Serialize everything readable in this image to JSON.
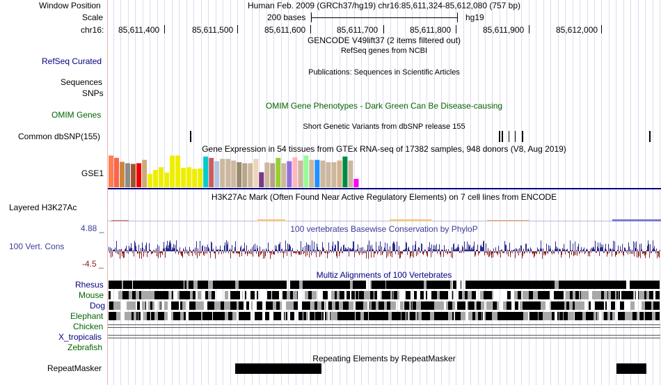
{
  "header": {
    "window_position_label": "Window Position",
    "window_position_value": "Human Feb. 2009 (GRCh37/hg19)   chr16:85,611,324-85,612,080 (757 bp)",
    "scale_label": "Scale",
    "scale_bases": "200 bases",
    "scale_assembly": "hg19",
    "chrom_label": "chr16:",
    "ruler_ticks": [
      "85,611,400",
      "85,611,500",
      "85,611,600",
      "85,611,700",
      "85,611,800",
      "85,611,900",
      "85,612,000"
    ]
  },
  "tracks": {
    "gencode": {
      "title": "GENCODE V49lift37 (2 items filtered out)"
    },
    "refseq": {
      "label": "RefSeq Curated",
      "title": "RefSeq genes from NCBI"
    },
    "publications": {
      "title": "Publications: Sequences in Scientific Articles"
    },
    "sequences": {
      "label": "Sequences"
    },
    "snps": {
      "label": "SNPs"
    },
    "omim": {
      "label": "OMIM Genes",
      "title": "OMIM Gene Phenotypes - Dark Green Can Be Disease-causing"
    },
    "dbsnp": {
      "label": "Common dbSNP(155)",
      "title": "Short Genetic Variants from dbSNP release 155"
    },
    "gtex": {
      "title": "Gene Expression in 54 tissues from GTEx RNA-seq of 17382 samples, 948 donors (V8, Aug 2019)",
      "gene_label": "GSE1"
    },
    "h3k27ac": {
      "label": "Layered H3K27Ac",
      "title": "H3K27Ac Mark (Often Found Near Active Regulatory Elements) on 7 cell lines from ENCODE"
    },
    "conservation": {
      "label": "100 Vert. Cons",
      "title": "100 vertebrates Basewise Conservation by PhyloP",
      "max_label": "4.88 _",
      "min_label": "-4.5 _"
    },
    "multiz": {
      "title": "Multiz Alignments of 100 Vertebrates",
      "species": [
        "Rhesus",
        "Mouse",
        "Dog",
        "Elephant",
        "Chicken",
        "X_tropicalis",
        "Zebrafish"
      ]
    },
    "repeatmasker": {
      "label": "RepeatMasker",
      "title": "Repeating Elements by RepeatMasker"
    }
  },
  "gtex_bars": [
    {
      "color": "#ff7f50",
      "value": 0.95
    },
    {
      "color": "#ff6347",
      "value": 0.88
    },
    {
      "color": "#cd853f",
      "value": 0.76
    },
    {
      "color": "#8b8b8b",
      "value": 0.72
    },
    {
      "color": "#a0522d",
      "value": 0.7
    },
    {
      "color": "#ee0000",
      "value": 0.72
    },
    {
      "color": "#cdaa7d",
      "value": 0.82
    },
    {
      "color": "#eeee00",
      "value": 0.4
    },
    {
      "color": "#eeee00",
      "value": 0.52
    },
    {
      "color": "#eeee00",
      "value": 0.6
    },
    {
      "color": "#eeee00",
      "value": 0.44
    },
    {
      "color": "#eeee00",
      "value": 0.95
    },
    {
      "color": "#eeee00",
      "value": 0.95
    },
    {
      "color": "#eeee00",
      "value": 0.58
    },
    {
      "color": "#eeee00",
      "value": 0.6
    },
    {
      "color": "#eeee00",
      "value": 0.55
    },
    {
      "color": "#eeee00",
      "value": 0.56
    },
    {
      "color": "#00cccc",
      "value": 0.92
    },
    {
      "color": "#cd5c5c",
      "value": 0.88
    },
    {
      "color": "#b0c4de",
      "value": 0.78
    },
    {
      "color": "#cdb79e",
      "value": 0.85
    },
    {
      "color": "#cdb79e",
      "value": 0.85
    },
    {
      "color": "#cdb79e",
      "value": 0.8
    },
    {
      "color": "#9c8a6e",
      "value": 0.75
    },
    {
      "color": "#b8a58a",
      "value": 0.72
    },
    {
      "color": "#cdb79e",
      "value": 0.72
    },
    {
      "color": "#eed5b7",
      "value": 0.85
    },
    {
      "color": "#7a378b",
      "value": 0.45
    },
    {
      "color": "#cdb79e",
      "value": 0.74
    },
    {
      "color": "#b4a08a",
      "value": 0.72
    },
    {
      "color": "#9acd32",
      "value": 0.88
    },
    {
      "color": "#cdb79e",
      "value": 0.72
    },
    {
      "color": "#9370db",
      "value": 0.78
    },
    {
      "color": "#ffb6c1",
      "value": 0.9
    },
    {
      "color": "#cdb79e",
      "value": 0.8
    },
    {
      "color": "#98fb98",
      "value": 0.95
    },
    {
      "color": "#cdb79e",
      "value": 0.82
    },
    {
      "color": "#1e90ff",
      "value": 0.82
    },
    {
      "color": "#cdb79e",
      "value": 0.8
    },
    {
      "color": "#cdb79e",
      "value": 0.75
    },
    {
      "color": "#cdb79e",
      "value": 0.75
    },
    {
      "color": "#d2b48c",
      "value": 0.8
    },
    {
      "color": "#008b45",
      "value": 0.92
    },
    {
      "color": "#cdb79e",
      "value": 0.8
    },
    {
      "color": "#ff00ff",
      "value": 0.25
    }
  ],
  "colors": {
    "track_label_blue": "#000080",
    "omim_green": "#006400",
    "phylop_positive": "#2d2d8c",
    "phylop_negative": "#8b2323",
    "gtex_baseline": "#000080"
  }
}
